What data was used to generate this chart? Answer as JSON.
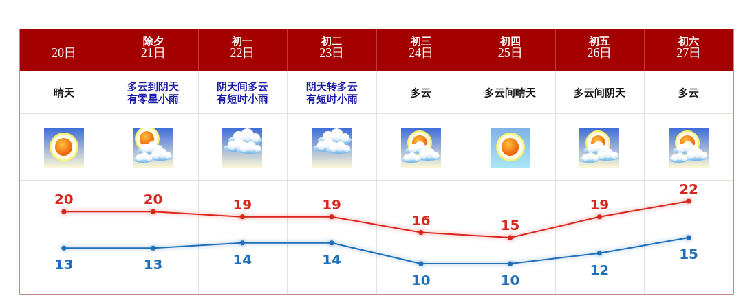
{
  "chart_data": {
    "type": "line",
    "categories": [
      "20日",
      "除夕\n21日",
      "初一\n22日",
      "初二\n23日",
      "初三\n24日",
      "初四\n25日",
      "初五\n26日",
      "初六\n27日"
    ],
    "series": [
      {
        "color": "#d8261c",
        "values": [
          20,
          20,
          19,
          19,
          16,
          15,
          19,
          22
        ]
      },
      {
        "color": "#1f6fb8",
        "values": [
          13,
          13,
          14,
          14,
          10,
          10,
          12,
          15
        ]
      }
    ],
    "annotations": [
      "晴天",
      "多云到阴天有零星小雨",
      "阴天间多云有短时小雨",
      "阴天转多云有短时小雨",
      "多云",
      "多云间晴天",
      "多云间阴天",
      "多云"
    ],
    "data_labels": true,
    "marker": "circle",
    "grid": "x",
    "tick_labels": "x"
  }
}
